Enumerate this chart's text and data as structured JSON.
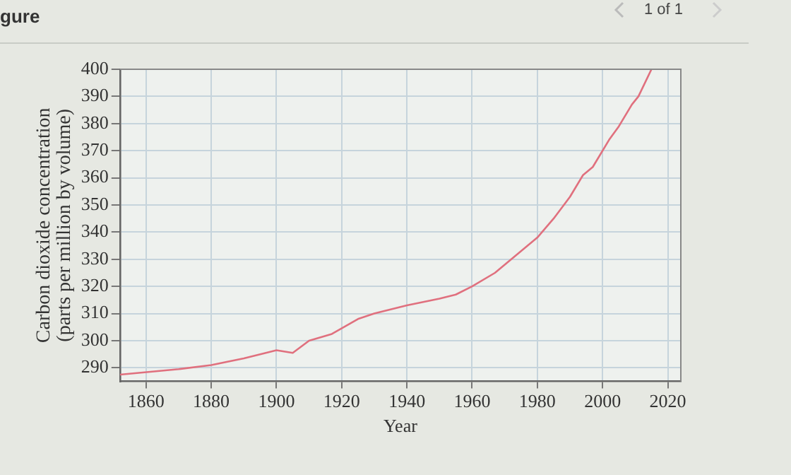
{
  "chart_data": {
    "type": "line",
    "xlabel": "Year",
    "ylabel": "Carbon dioxide concentration\n(parts per million by volume)",
    "annotations": [
      "gure",
      "1 of 1"
    ],
    "x": [
      1852,
      1870,
      1880,
      1890,
      1900,
      1905,
      1910,
      1917,
      1925,
      1930,
      1940,
      1950,
      1955,
      1960,
      1967,
      1975,
      1980,
      1985,
      1990,
      1994,
      1997,
      2002,
      2005,
      2009,
      2011,
      2015
    ],
    "series": [
      {
        "color": "#e0707e",
        "values": [
          287.5,
          289.5,
          291,
          293.5,
          296.5,
          295.5,
          300,
          302.5,
          308,
          310,
          313,
          315.5,
          317,
          320,
          325,
          333,
          338,
          345,
          353,
          361,
          364,
          374,
          379,
          387,
          390,
          400
        ]
      }
    ],
    "xlim": [
      1852,
      2024
    ],
    "xticks": [
      1860,
      1880,
      1900,
      1920,
      1940,
      1960,
      1980,
      2000,
      2020
    ],
    "ylim": [
      285,
      400
    ],
    "yticks": [
      290,
      300,
      310,
      320,
      330,
      340,
      350,
      360,
      370,
      380,
      390,
      400
    ],
    "grid": true,
    "legend": false,
    "marker": "none",
    "line_style": "solid"
  }
}
